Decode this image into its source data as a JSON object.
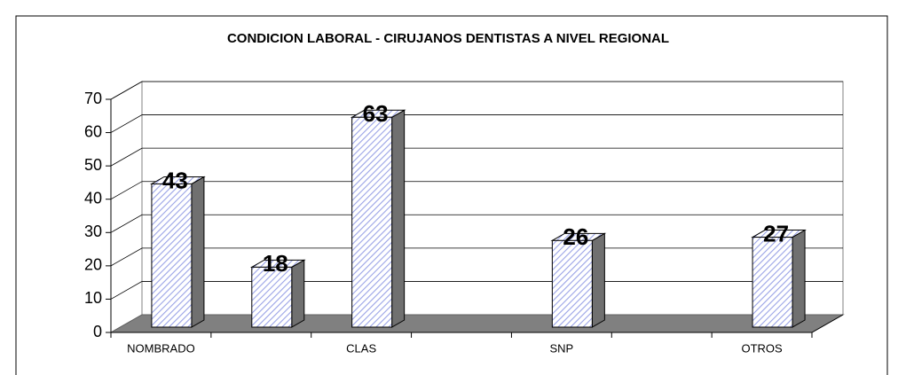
{
  "chart_data": {
    "type": "bar3d",
    "title": "CONDICION LABORAL - CIRUJANOS DENTISTAS A NIVEL REGIONAL",
    "categories": [
      "NOMBRADO",
      null,
      "CLAS",
      null,
      "SNP",
      null,
      "OTROS"
    ],
    "values": [
      43,
      18,
      63,
      null,
      26,
      null,
      27
    ],
    "color": "#b8bff0",
    "ylim": [
      0,
      70
    ],
    "yticks": [
      0,
      10,
      20,
      30,
      40,
      50,
      60,
      70
    ],
    "grid": true
  }
}
